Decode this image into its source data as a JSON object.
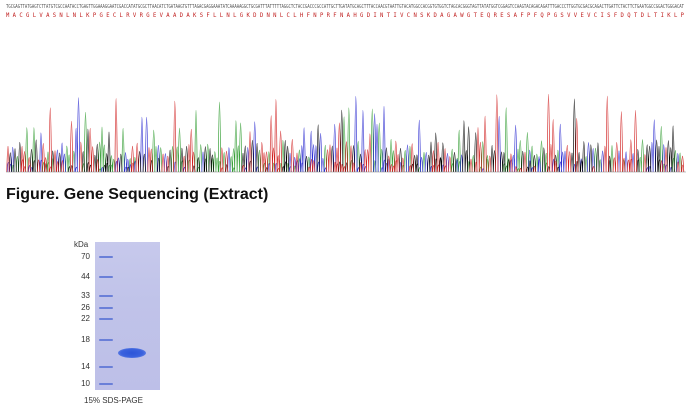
{
  "figure_caption": "Figure. Gene Sequencing (Extract)",
  "amino_acid_sequence": "M A C G L V A S N L N L K P G E C L R V R G E V A A D A K S F L L N L G K D D N N L C L H F N P R F N A H G D I N T I V C N S K D A G A W G T E Q R E S A F P F Q P G S V V E V C I S F D Q T D L T I K L P",
  "trace_colors": {
    "A": "#2e9b2e",
    "C": "#2a2ad0",
    "G": "#000000",
    "T": "#d02020"
  },
  "sds_page": {
    "unit_label": "kDa",
    "ladder": [
      "70",
      "44",
      "33",
      "26",
      "22",
      "18",
      "14",
      "10"
    ],
    "caption": "15% SDS-PAGE",
    "lane_colors": {
      "background": "#c0c3e9",
      "band": "#2d55d8",
      "marker": "#6a7fd8"
    }
  }
}
